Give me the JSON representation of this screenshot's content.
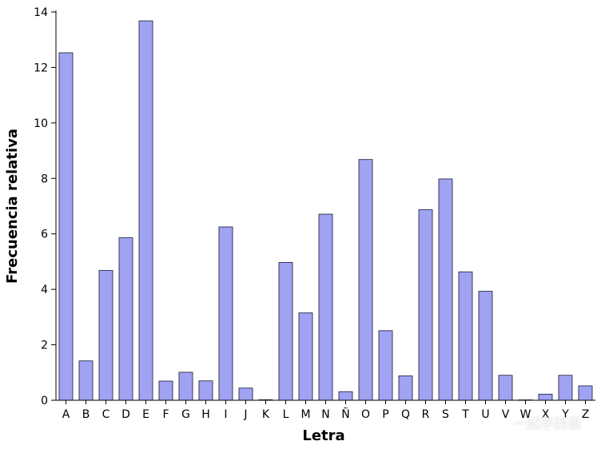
{
  "chart_data": {
    "type": "bar",
    "xlabel": "Letra",
    "ylabel": "Frecuencia relativa",
    "ylim": [
      0,
      14
    ],
    "yticks": [
      0,
      2,
      4,
      6,
      8,
      10,
      12,
      14
    ],
    "categories": [
      "A",
      "B",
      "C",
      "D",
      "E",
      "F",
      "G",
      "H",
      "I",
      "J",
      "K",
      "L",
      "M",
      "N",
      "Ñ",
      "O",
      "P",
      "Q",
      "R",
      "S",
      "T",
      "U",
      "V",
      "W",
      "X",
      "Y",
      "Z"
    ],
    "values": [
      12.53,
      1.42,
      4.68,
      5.86,
      13.68,
      0.69,
      1.01,
      0.7,
      6.25,
      0.44,
      0.02,
      4.97,
      3.15,
      6.71,
      0.31,
      8.68,
      2.51,
      0.88,
      6.87,
      7.98,
      4.63,
      3.93,
      0.9,
      0.01,
      0.22,
      0.9,
      0.52
    ],
    "colors": {
      "bar_fill": "#9fa3f2",
      "bar_stroke": "#2b2b4a"
    },
    "grid": false,
    "legend": "none"
  },
  "watermark": {
    "text": "一起学西语",
    "icon": "wechat-icon"
  }
}
